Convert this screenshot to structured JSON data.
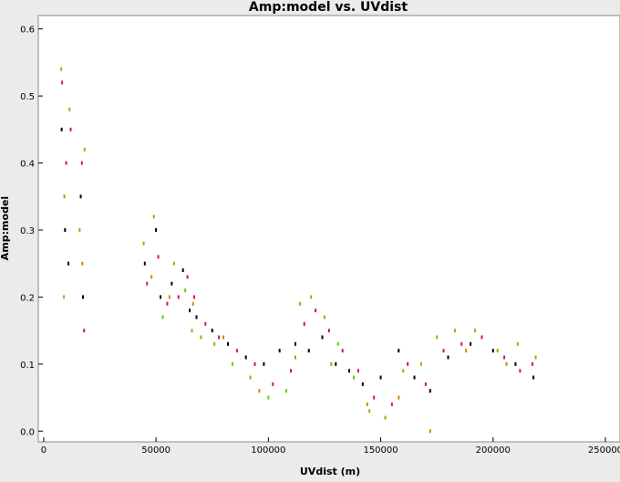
{
  "chart_data": {
    "type": "scatter",
    "title": "Amp:model vs. UVdist",
    "x_label": "UVdist (m)",
    "y_label": "Amp:model",
    "xlim": [
      -2400,
      256500
    ],
    "ylim": [
      -0.016,
      0.62
    ],
    "xticks": [
      0,
      50000,
      100000,
      150000,
      200000,
      250000
    ],
    "yticks": [
      {
        "value": 0,
        "label": "0.0"
      },
      0.1,
      0.2,
      0.3,
      0.4,
      0.5,
      0.6
    ],
    "grid": false,
    "series": [
      {
        "color": "#000000",
        "x": [
          8000,
          9500,
          11000,
          16500,
          17500,
          45000,
          50000,
          52000,
          57000,
          62000,
          65000,
          68000,
          75000,
          82000,
          90000,
          98000,
          105000,
          112000,
          118000,
          124000,
          130000,
          136000,
          142000,
          150000,
          158000,
          165000,
          172000,
          180000,
          190000,
          200000,
          210000,
          218000
        ],
        "y": [
          0.45,
          0.3,
          0.25,
          0.35,
          0.2,
          0.25,
          0.3,
          0.2,
          0.22,
          0.24,
          0.18,
          0.17,
          0.15,
          0.13,
          0.11,
          0.1,
          0.12,
          0.13,
          0.12,
          0.14,
          0.1,
          0.09,
          0.07,
          0.08,
          0.12,
          0.08,
          0.06,
          0.11,
          0.13,
          0.12,
          0.1,
          0.08
        ]
      },
      {
        "color": "#d4145a",
        "x": [
          8200,
          10000,
          12000,
          17000,
          18000,
          46000,
          51000,
          55000,
          60000,
          64000,
          67000,
          72000,
          78000,
          86000,
          94000,
          102000,
          110000,
          116000,
          121000,
          127000,
          133000,
          140000,
          147000,
          155000,
          162000,
          170000,
          178000,
          186000,
          195000,
          205000,
          212000,
          217500
        ],
        "y": [
          0.52,
          0.4,
          0.45,
          0.4,
          0.15,
          0.22,
          0.26,
          0.19,
          0.2,
          0.23,
          0.2,
          0.16,
          0.14,
          0.12,
          0.1,
          0.07,
          0.09,
          0.16,
          0.18,
          0.15,
          0.12,
          0.09,
          0.05,
          0.04,
          0.1,
          0.07,
          0.12,
          0.13,
          0.14,
          0.11,
          0.09,
          0.1
        ]
      },
      {
        "color": "#66cc00",
        "x": [
          7800,
          9000,
          11500,
          16000,
          18200,
          44500,
          49000,
          53000,
          58000,
          63000,
          66000,
          70000,
          76000,
          84000,
          92000,
          100000,
          108000,
          114000,
          119000,
          125000,
          131000,
          138000,
          145000,
          152000,
          160000,
          168000,
          175000,
          183000,
          192000,
          202000,
          211000,
          219000
        ],
        "y": [
          0.54,
          0.2,
          0.48,
          0.3,
          0.42,
          0.28,
          0.32,
          0.17,
          0.25,
          0.21,
          0.15,
          0.14,
          0.13,
          0.1,
          0.08,
          0.05,
          0.06,
          0.19,
          0.2,
          0.17,
          0.13,
          0.08,
          0.03,
          0.02,
          0.09,
          0.1,
          0.14,
          0.15,
          0.15,
          0.12,
          0.13,
          0.11
        ]
      },
      {
        "color": "#cc8800",
        "x": [
          9200,
          17200,
          48000,
          56000,
          66500,
          80000,
          96000,
          112000,
          128000,
          144000,
          158000,
          172000,
          188000,
          206000
        ],
        "y": [
          0.35,
          0.25,
          0.23,
          0.2,
          0.19,
          0.14,
          0.06,
          0.11,
          0.1,
          0.04,
          0.05,
          0.0,
          0.12,
          0.1
        ]
      }
    ]
  }
}
